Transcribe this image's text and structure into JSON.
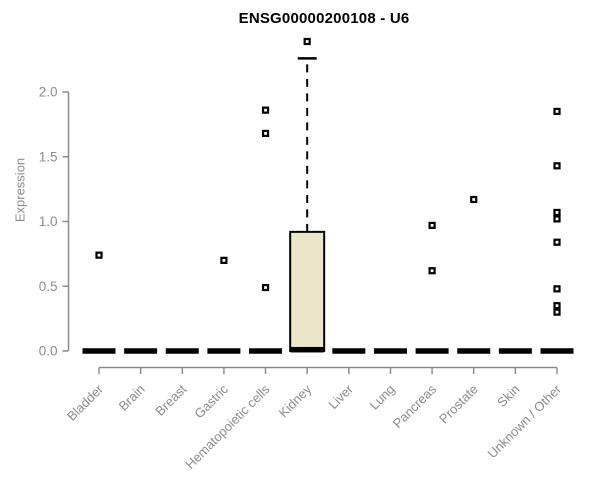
{
  "chart_data": {
    "type": "boxplot",
    "title": "ENSG00000200108 - U6",
    "ylabel": "Expression",
    "xlabel": "",
    "ylim": [
      0,
      2.45
    ],
    "yticks": [
      0.0,
      0.5,
      1.0,
      1.5,
      2.0
    ],
    "grid": "off",
    "categories": [
      "Bladder",
      "Brain",
      "Breast",
      "Gastric",
      "Hematopoietic cells",
      "Kidney",
      "Liver",
      "Lung",
      "Pancreas",
      "Prostate",
      "Skin",
      "Unknown / Other"
    ],
    "boxes": [
      {
        "category": "Bladder",
        "q1": 0,
        "median": 0,
        "q3": 0,
        "whisker_low": 0,
        "whisker_high": 0,
        "outliers": [
          0.74
        ]
      },
      {
        "category": "Brain",
        "q1": 0,
        "median": 0,
        "q3": 0,
        "whisker_low": 0,
        "whisker_high": 0,
        "outliers": []
      },
      {
        "category": "Breast",
        "q1": 0,
        "median": 0,
        "q3": 0,
        "whisker_low": 0,
        "whisker_high": 0,
        "outliers": []
      },
      {
        "category": "Gastric",
        "q1": 0,
        "median": 0,
        "q3": 0,
        "whisker_low": 0,
        "whisker_high": 0,
        "outliers": [
          0.7
        ]
      },
      {
        "category": "Hematopoietic cells",
        "q1": 0,
        "median": 0,
        "q3": 0,
        "whisker_low": 0,
        "whisker_high": 0,
        "outliers": [
          1.86,
          1.68,
          0.49
        ]
      },
      {
        "category": "Kidney",
        "q1": 0,
        "median": 0.01,
        "q3": 0.92,
        "whisker_low": 0,
        "whisker_high": 2.26,
        "outliers": [
          2.39
        ]
      },
      {
        "category": "Liver",
        "q1": 0,
        "median": 0,
        "q3": 0,
        "whisker_low": 0,
        "whisker_high": 0,
        "outliers": []
      },
      {
        "category": "Lung",
        "q1": 0,
        "median": 0,
        "q3": 0,
        "whisker_low": 0,
        "whisker_high": 0,
        "outliers": []
      },
      {
        "category": "Pancreas",
        "q1": 0,
        "median": 0,
        "q3": 0,
        "whisker_low": 0,
        "whisker_high": 0,
        "outliers": [
          0.97,
          0.62
        ]
      },
      {
        "category": "Prostate",
        "q1": 0,
        "median": 0,
        "q3": 0,
        "whisker_low": 0,
        "whisker_high": 0,
        "outliers": [
          1.17
        ]
      },
      {
        "category": "Skin",
        "q1": 0,
        "median": 0,
        "q3": 0,
        "whisker_low": 0,
        "whisker_high": 0,
        "outliers": []
      },
      {
        "category": "Unknown / Other",
        "q1": 0,
        "median": 0,
        "q3": 0,
        "whisker_low": 0,
        "whisker_high": 0,
        "outliers": [
          1.85,
          1.43,
          1.07,
          1.02,
          0.84,
          0.48,
          0.35,
          0.3
        ]
      }
    ],
    "colors": {
      "box_fill": "#ebe5c9",
      "box_stroke": "#000000",
      "median": "#000000",
      "outlier": "#000000",
      "axis": "#8c8c8c",
      "tick_label": "#8c8c8c",
      "title": "#000000"
    }
  }
}
